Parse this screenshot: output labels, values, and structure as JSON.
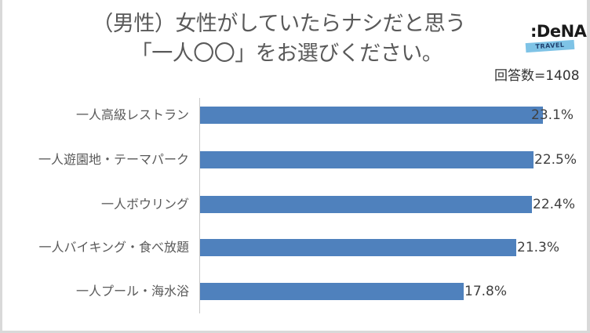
{
  "title": {
    "line1": "（男性）女性がしていたらナシだと思う",
    "line2": "「一人〇〇」をお選びください。"
  },
  "logo": {
    "brand": ":DeNA",
    "sub": "TRAVEL",
    "colors": {
      "band": "#7ec3e6",
      "text": "#1a1a1a"
    }
  },
  "sample_size": "回答数=1408",
  "colors": {
    "bar": "#4f81bd",
    "axis": "#c8c8c8",
    "text": "#595959"
  },
  "chart_data": {
    "type": "bar",
    "orientation": "horizontal",
    "title": "（男性）女性がしていたらナシだと思う「一人〇〇」をお選びください。",
    "annotation": "回答数=1408",
    "categories": [
      "一人高級レストラン",
      "一人遊園地・テーマパーク",
      "一人ボウリング",
      "一人バイキング・食べ放題",
      "一人プール・海水浴"
    ],
    "values": [
      23.1,
      22.5,
      22.4,
      21.3,
      17.8
    ],
    "value_labels": [
      "23.1%",
      "22.5%",
      "22.4%",
      "21.3%",
      "17.8%"
    ],
    "unit": "%",
    "xlabel": "",
    "ylabel": "",
    "xlim": [
      0,
      25
    ],
    "grid": false,
    "legend": null
  },
  "rows": [
    {
      "label": "一人高級レストラン",
      "value": 23.1,
      "value_label": "23.1%"
    },
    {
      "label": "一人遊園地・テーマパーク",
      "value": 22.5,
      "value_label": "22.5%"
    },
    {
      "label": "一人ボウリング",
      "value": 22.4,
      "value_label": "22.4%"
    },
    {
      "label": "一人バイキング・食べ放題",
      "value": 21.3,
      "value_label": "21.3%"
    },
    {
      "label": "一人プール・海水浴",
      "value": 17.8,
      "value_label": "17.8%"
    }
  ]
}
